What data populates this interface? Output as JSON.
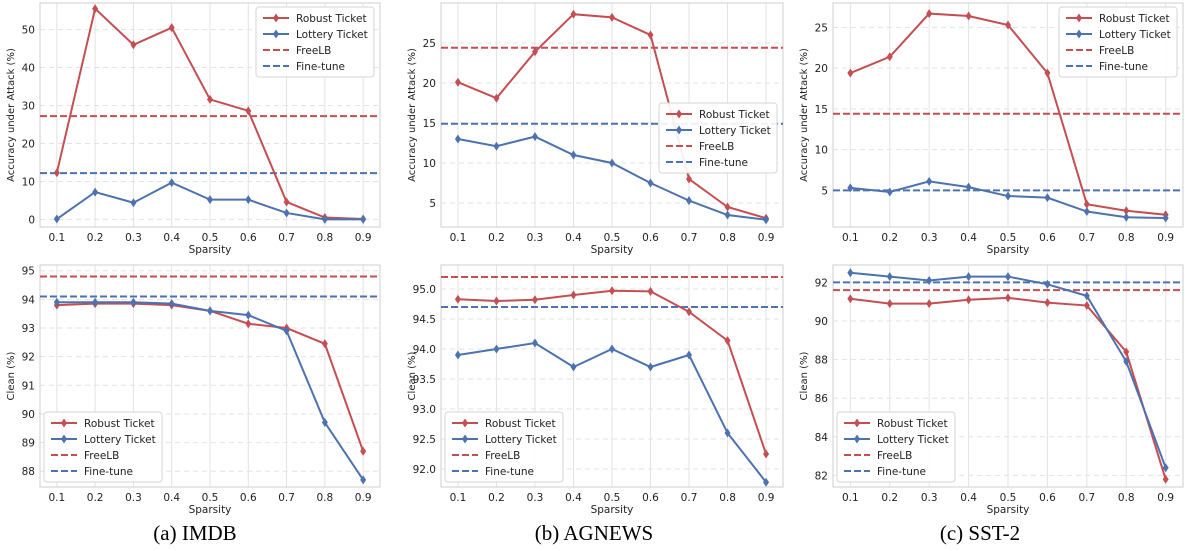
{
  "legend_labels": {
    "robust": "Robust Ticket",
    "lottery": "Lottery Ticket",
    "freelb": "FreeLB",
    "finetune": "Fine-tune"
  },
  "colors": {
    "robust": "#c44e52",
    "lottery": "#4c72b0",
    "grid": "#e3e3e3"
  },
  "captions": [
    "(a)  IMDB",
    "(b)  AGNEWS",
    "(c)  SST-2"
  ],
  "chart_data": [
    {
      "type": "line",
      "dataset": "IMDB",
      "metric": "attack",
      "xlabel": "Sparsity",
      "ylabel": "Accuracy under Attack (%)",
      "x": [
        0.1,
        0.2,
        0.3,
        0.4,
        0.5,
        0.6,
        0.7,
        0.8,
        0.9
      ],
      "xticks": [
        "0.1",
        "0.2",
        "0.3",
        "0.4",
        "0.5",
        "0.6",
        "0.7",
        "0.8",
        "0.9"
      ],
      "ylim": [
        -2,
        57
      ],
      "yticks": [
        0,
        10,
        20,
        30,
        40,
        50
      ],
      "ytick_labels": [
        "0",
        "10",
        "20",
        "30",
        "40",
        "50"
      ],
      "legend_position": "top-right",
      "series": [
        {
          "key": "robust",
          "values": [
            12.3,
            55.5,
            46.0,
            50.5,
            31.6,
            28.6,
            4.6,
            0.5,
            0.1
          ]
        },
        {
          "key": "lottery",
          "values": [
            0.1,
            7.2,
            4.4,
            9.7,
            5.2,
            5.2,
            1.7,
            0.0,
            0.0
          ]
        }
      ],
      "baselines": [
        {
          "key": "freelb",
          "value": 27.2
        },
        {
          "key": "finetune",
          "value": 12.2
        }
      ]
    },
    {
      "type": "line",
      "dataset": "AGNEWS",
      "metric": "attack",
      "xlabel": "Sparsity",
      "ylabel": "Accuracy under Attack (%)",
      "x": [
        0.1,
        0.2,
        0.3,
        0.4,
        0.5,
        0.6,
        0.7,
        0.8,
        0.9
      ],
      "xticks": [
        "0.1",
        "0.2",
        "0.3",
        "0.4",
        "0.5",
        "0.6",
        "0.7",
        "0.8",
        "0.9"
      ],
      "ylim": [
        2,
        30
      ],
      "yticks": [
        5,
        10,
        15,
        20,
        25
      ],
      "ytick_labels": [
        "5",
        "10",
        "15",
        "20",
        "25"
      ],
      "legend_position": "center-right",
      "series": [
        {
          "key": "robust",
          "values": [
            20.1,
            18.1,
            23.9,
            28.6,
            28.2,
            26.0,
            8.0,
            4.5,
            3.1
          ]
        },
        {
          "key": "lottery",
          "values": [
            13.0,
            12.1,
            13.3,
            11.0,
            10.0,
            7.5,
            5.3,
            3.5,
            2.9
          ]
        }
      ],
      "baselines": [
        {
          "key": "freelb",
          "value": 24.4
        },
        {
          "key": "finetune",
          "value": 14.9
        }
      ]
    },
    {
      "type": "line",
      "dataset": "SST-2",
      "metric": "attack",
      "xlabel": "Sparsity",
      "ylabel": "Accuracy under Attack (%)",
      "x": [
        0.1,
        0.2,
        0.3,
        0.4,
        0.5,
        0.6,
        0.7,
        0.8,
        0.9
      ],
      "xticks": [
        "0.1",
        "0.2",
        "0.3",
        "0.4",
        "0.5",
        "0.6",
        "0.7",
        "0.8",
        "0.9"
      ],
      "ylim": [
        0.5,
        28
      ],
      "yticks": [
        5,
        10,
        15,
        20,
        25
      ],
      "ytick_labels": [
        "5",
        "10",
        "15",
        "20",
        "25"
      ],
      "legend_position": "top-right",
      "series": [
        {
          "key": "robust",
          "values": [
            19.4,
            21.4,
            26.7,
            26.4,
            25.3,
            19.4,
            3.3,
            2.5,
            2.0
          ]
        },
        {
          "key": "lottery",
          "values": [
            5.3,
            4.8,
            6.1,
            5.4,
            4.3,
            4.1,
            2.4,
            1.7,
            1.6
          ]
        }
      ],
      "baselines": [
        {
          "key": "freelb",
          "value": 14.4
        },
        {
          "key": "finetune",
          "value": 5.0
        }
      ]
    },
    {
      "type": "line",
      "dataset": "IMDB",
      "metric": "clean",
      "xlabel": "Sparsity",
      "ylabel": "Clean (%)",
      "x": [
        0.1,
        0.2,
        0.3,
        0.4,
        0.5,
        0.6,
        0.7,
        0.8,
        0.9
      ],
      "xticks": [
        "0.1",
        "0.2",
        "0.3",
        "0.4",
        "0.5",
        "0.6",
        "0.7",
        "0.8",
        "0.9"
      ],
      "ylim": [
        87.45,
        95.2
      ],
      "yticks": [
        88,
        89,
        90,
        91,
        92,
        93,
        94,
        95
      ],
      "ytick_labels": [
        "88",
        "89",
        "90",
        "91",
        "92",
        "93",
        "94",
        "95"
      ],
      "legend_position": "bottom-left",
      "series": [
        {
          "key": "robust",
          "values": [
            93.8,
            93.85,
            93.85,
            93.8,
            93.6,
            93.15,
            93.0,
            92.45,
            88.7
          ]
        },
        {
          "key": "lottery",
          "values": [
            93.9,
            93.9,
            93.9,
            93.85,
            93.6,
            93.45,
            92.9,
            89.7,
            87.7
          ]
        }
      ],
      "baselines": [
        {
          "key": "freelb",
          "value": 94.8
        },
        {
          "key": "finetune",
          "value": 94.1
        }
      ]
    },
    {
      "type": "line",
      "dataset": "AGNEWS",
      "metric": "clean",
      "xlabel": "Sparsity",
      "ylabel": "Clean (%)",
      "x": [
        0.1,
        0.2,
        0.3,
        0.4,
        0.5,
        0.6,
        0.7,
        0.8,
        0.9
      ],
      "xticks": [
        "0.1",
        "0.2",
        "0.3",
        "0.4",
        "0.5",
        "0.6",
        "0.7",
        "0.8",
        "0.9"
      ],
      "ylim": [
        91.7,
        95.4
      ],
      "yticks": [
        92.0,
        92.5,
        93.0,
        93.5,
        94.0,
        94.5,
        95.0
      ],
      "ytick_labels": [
        "92.0",
        "92.5",
        "93.0",
        "93.5",
        "94.0",
        "94.5",
        "95.0"
      ],
      "legend_position": "bottom-left",
      "series": [
        {
          "key": "robust",
          "values": [
            94.83,
            94.8,
            94.82,
            94.9,
            94.97,
            94.96,
            94.62,
            94.14,
            92.25
          ]
        },
        {
          "key": "lottery",
          "values": [
            93.9,
            94.0,
            94.1,
            93.7,
            94.0,
            93.7,
            93.9,
            92.6,
            91.78
          ]
        }
      ],
      "baselines": [
        {
          "key": "freelb",
          "value": 95.2
        },
        {
          "key": "finetune",
          "value": 94.7
        }
      ]
    },
    {
      "type": "line",
      "dataset": "SST-2",
      "metric": "clean",
      "xlabel": "Sparsity",
      "ylabel": "Clean (%)",
      "x": [
        0.1,
        0.2,
        0.3,
        0.4,
        0.5,
        0.6,
        0.7,
        0.8,
        0.9
      ],
      "xticks": [
        "0.1",
        "0.2",
        "0.3",
        "0.4",
        "0.5",
        "0.6",
        "0.7",
        "0.8",
        "0.9"
      ],
      "ylim": [
        81.4,
        92.9
      ],
      "yticks": [
        82,
        84,
        86,
        88,
        90,
        92
      ],
      "ytick_labels": [
        "82",
        "84",
        "86",
        "88",
        "90",
        "92"
      ],
      "legend_position": "bottom-left",
      "series": [
        {
          "key": "robust",
          "values": [
            91.15,
            90.9,
            90.9,
            91.1,
            91.2,
            90.95,
            90.8,
            88.4,
            81.8
          ]
        },
        {
          "key": "lottery",
          "values": [
            92.5,
            92.3,
            92.1,
            92.3,
            92.3,
            91.9,
            91.3,
            87.9,
            82.4
          ]
        }
      ],
      "baselines": [
        {
          "key": "freelb",
          "value": 91.6
        },
        {
          "key": "finetune",
          "value": 92.0
        }
      ]
    }
  ]
}
